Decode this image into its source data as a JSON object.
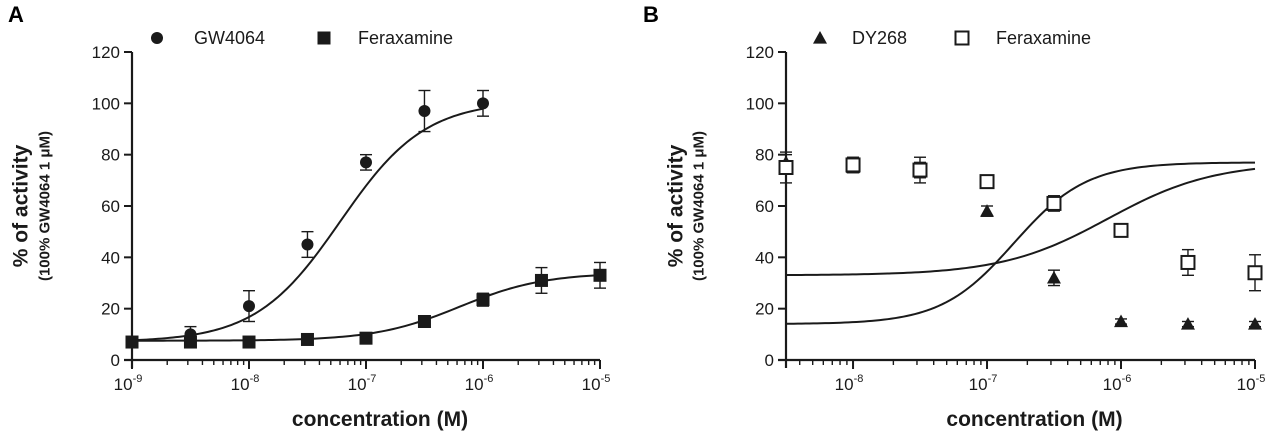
{
  "chart_data": [
    {
      "panel_label": "A",
      "type": "scatter",
      "xscale": "log",
      "xlim": [
        1e-09,
        1e-05
      ],
      "ylim": [
        0,
        120
      ],
      "yticks": [
        0,
        20,
        40,
        60,
        80,
        100,
        120
      ],
      "xticks": [
        {
          "base": "10",
          "exp": "-9"
        },
        {
          "base": "10",
          "exp": "-8"
        },
        {
          "base": "10",
          "exp": "-7"
        },
        {
          "base": "10",
          "exp": "-6"
        },
        {
          "base": "10",
          "exp": "-5"
        }
      ],
      "xlabel": "concentration (M)",
      "ylabel": "% of activity",
      "ylabel_sub": "(100% GW4064 1 μM)",
      "series": [
        {
          "name": "GW4064",
          "marker": "circle-filled",
          "x": [
            1e-09,
            3.16e-09,
            1e-08,
            3.16e-08,
            1e-07,
            3.16e-07,
            1e-06
          ],
          "y": [
            7,
            10,
            21,
            45,
            77,
            97,
            100
          ],
          "err": [
            1,
            3,
            6,
            5,
            3,
            8,
            5
          ],
          "curve": {
            "bottom": 7,
            "top": 101,
            "logEC50": -7.22,
            "hill": 1.2
          }
        },
        {
          "name": "Feraxamine",
          "marker": "square-filled",
          "x": [
            1e-09,
            3.16e-09,
            1e-08,
            3.16e-08,
            1e-07,
            3.16e-07,
            1e-06,
            3.16e-06,
            1e-05
          ],
          "y": [
            7,
            7,
            7,
            8,
            8.5,
            15,
            23.5,
            31,
            33
          ],
          "err": [
            1,
            1,
            1,
            1,
            1,
            2,
            2.5,
            5,
            5
          ],
          "curve": {
            "bottom": 7.5,
            "top": 34,
            "logEC50": -6.2,
            "hill": 1.2
          }
        }
      ]
    },
    {
      "panel_label": "B",
      "type": "scatter",
      "xscale": "log",
      "xlim": [
        3.16e-09,
        1e-05
      ],
      "ylim": [
        0,
        120
      ],
      "yticks": [
        0,
        20,
        40,
        60,
        80,
        100,
        120
      ],
      "xticks": [
        {
          "base": "10",
          "exp": "-8"
        },
        {
          "base": "10",
          "exp": "-7"
        },
        {
          "base": "10",
          "exp": "-6"
        },
        {
          "base": "10",
          "exp": "-5"
        }
      ],
      "xlabel": "concentration (M)",
      "ylabel": "% of activity",
      "ylabel_sub": "(100% GW4064 1 μM)",
      "series": [
        {
          "name": "DY268",
          "marker": "triangle-filled",
          "x": [
            3.16e-09,
            1e-08,
            3.16e-08,
            1e-07,
            3.16e-07,
            1e-06,
            3.16e-06,
            1e-05
          ],
          "y": [
            77,
            75,
            74,
            58,
            32,
            15,
            14,
            14
          ],
          "err": [
            3,
            2,
            3,
            2,
            3,
            1,
            1,
            1
          ],
          "curve": {
            "bottom": 14,
            "top": 77,
            "logEC50": -6.8,
            "hill": 1.6
          }
        },
        {
          "name": "Feraxamine",
          "marker": "square-open",
          "x": [
            3.16e-09,
            1e-08,
            3.16e-08,
            1e-07,
            3.16e-07,
            1e-06,
            3.16e-06,
            1e-05
          ],
          "y": [
            75,
            76,
            74,
            69.5,
            61,
            50.5,
            38,
            34
          ],
          "err": [
            6,
            3,
            5,
            2,
            3,
            2,
            5,
            7
          ],
          "curve": {
            "bottom": 33,
            "top": 77,
            "logEC50": -6.1,
            "hill": 1.1
          }
        }
      ]
    }
  ]
}
